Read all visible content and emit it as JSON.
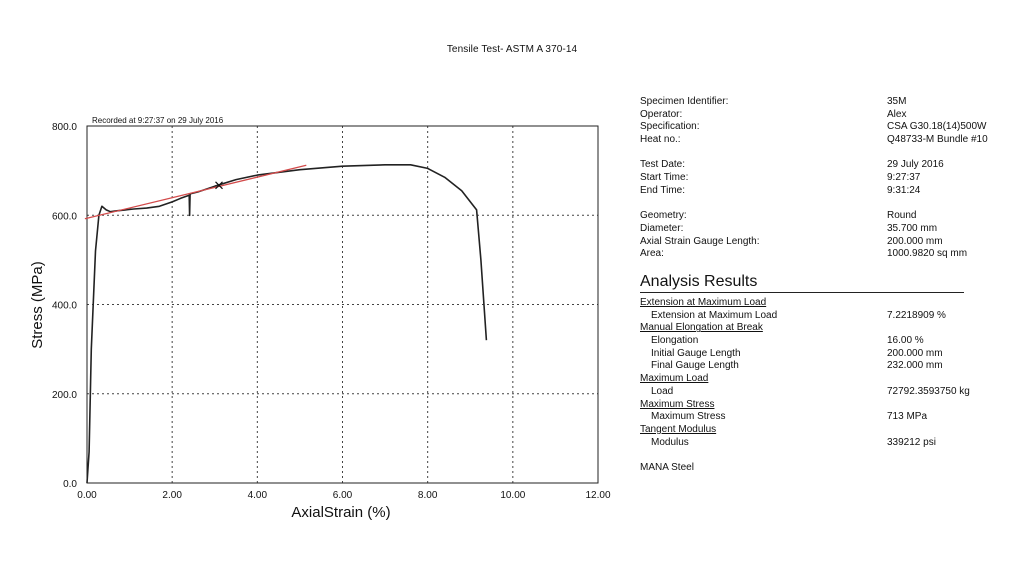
{
  "page": {
    "title": "Tensile Test- ASTM A 370-14"
  },
  "chart_data": {
    "type": "line",
    "title": "Tensile Test- ASTM A 370-14",
    "note": "Recorded at 9:27:37 on 29 July 2016",
    "xlabel": "AxialStrain (%)",
    "ylabel": "Stress (MPa)",
    "xlim": [
      0,
      12
    ],
    "ylim": [
      0,
      800
    ],
    "x_ticks": [
      "0.00",
      "2.00",
      "4.00",
      "6.00",
      "8.00",
      "10.00",
      "12.00"
    ],
    "y_ticks": [
      "0.0",
      "200.0",
      "400.0",
      "600.0",
      "800.0"
    ],
    "grid": true,
    "grid_style": "dotted",
    "series": [
      {
        "color": "#222222",
        "points": [
          [
            0.0,
            0
          ],
          [
            0.05,
            70
          ],
          [
            0.1,
            300
          ],
          [
            0.2,
            520
          ],
          [
            0.28,
            600
          ],
          [
            0.35,
            620
          ],
          [
            0.45,
            612
          ],
          [
            0.55,
            608
          ],
          [
            0.7,
            610
          ],
          [
            0.9,
            612
          ],
          [
            1.1,
            614
          ],
          [
            1.4,
            616
          ],
          [
            1.7,
            620
          ],
          [
            2.0,
            630
          ],
          [
            2.2,
            638
          ],
          [
            2.4,
            645
          ],
          [
            2.41,
            600
          ],
          [
            2.42,
            648
          ],
          [
            2.6,
            652
          ],
          [
            3.0,
            665
          ],
          [
            3.5,
            680
          ],
          [
            4.0,
            690
          ],
          [
            5.0,
            702
          ],
          [
            6.0,
            710
          ],
          [
            7.0,
            713
          ],
          [
            7.6,
            713
          ],
          [
            8.0,
            705
          ],
          [
            8.4,
            685
          ],
          [
            8.8,
            655
          ],
          [
            9.15,
            612
          ],
          [
            9.25,
            500
          ],
          [
            9.38,
            320
          ]
        ]
      },
      {
        "color": "#d24a4a",
        "points": [
          [
            -0.05,
            592
          ],
          [
            5.15,
            712
          ]
        ]
      }
    ],
    "annotations": [
      {
        "marker": "x",
        "x": 3.1,
        "y": 667
      }
    ]
  },
  "specimen": [
    {
      "label": "Specimen Identifier:",
      "value": "35M"
    },
    {
      "label": "Operator:",
      "value": "Alex"
    },
    {
      "label": "Specification:",
      "value": "CSA G30.18(14)500W"
    },
    {
      "label": "Heat no.:",
      "value": "Q48733-M Bundle #10"
    }
  ],
  "timing": [
    {
      "label": "Test Date:",
      "value": "29 July 2016"
    },
    {
      "label": "Start Time:",
      "value": "9:27:37"
    },
    {
      "label": "End Time:",
      "value": "9:31:24"
    }
  ],
  "geometry": [
    {
      "label": "Geometry:",
      "value": "Round"
    },
    {
      "label": "Diameter:",
      "value": "35.700 mm"
    },
    {
      "label": "Axial Strain Gauge Length:",
      "value": "200.000 mm"
    },
    {
      "label": "Area:",
      "value": "1000.9820 sq mm"
    }
  ],
  "analysis": {
    "title": "Analysis Results",
    "sections": [
      {
        "heading": "Extension at Maximum Load",
        "rows": [
          {
            "label": "Extension at Maximum Load",
            "value": "7.2218909 %"
          }
        ]
      },
      {
        "heading": "Manual Elongation at Break",
        "rows": [
          {
            "label": "Elongation",
            "value": "16.00 %"
          },
          {
            "label": "Initial Gauge Length",
            "value": "200.000 mm"
          },
          {
            "label": "Final Gauge Length",
            "value": "232.000 mm"
          }
        ]
      },
      {
        "heading": "Maximum Load",
        "rows": [
          {
            "label": "Load",
            "value": "72792.3593750 kg"
          }
        ]
      },
      {
        "heading": "Maximum Stress",
        "rows": [
          {
            "label": "Maximum Stress",
            "value": "713 MPa"
          }
        ]
      },
      {
        "heading": "Tangent Modulus",
        "rows": [
          {
            "label": "Modulus",
            "value": "339212 psi"
          }
        ]
      }
    ]
  },
  "footer": {
    "brand": "MANA Steel"
  }
}
